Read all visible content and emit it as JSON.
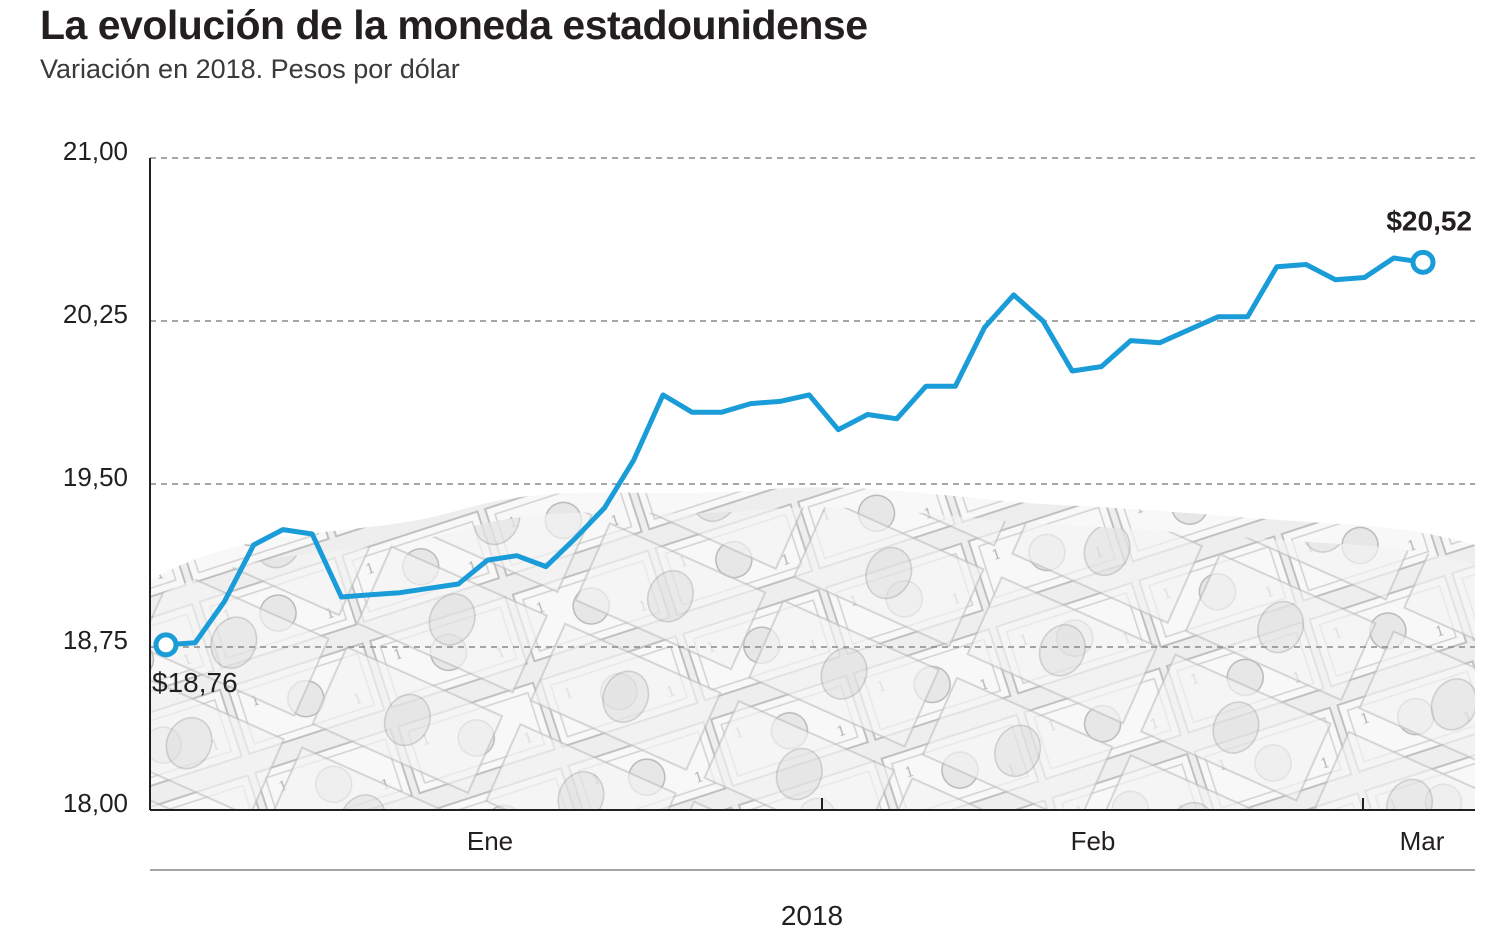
{
  "header": {
    "title": "La evolución de la moneda estadounidense",
    "subtitle": "Variación en 2018. Pesos por dólar"
  },
  "colors": {
    "line": "#1a9cd8",
    "text": "#231f20",
    "grid": "#8a8a8a",
    "axis": "#231f20",
    "background_image_tint": "#d9d9d9"
  },
  "background_image": "dollar-bills-photo",
  "chart_data": {
    "type": "line",
    "title": "La evolución de la moneda estadounidense",
    "subtitle": "Variación en 2018. Pesos por dólar",
    "ylim": [
      18.0,
      21.0
    ],
    "yticks": [
      18.0,
      18.75,
      19.5,
      20.25,
      21.0
    ],
    "ytick_labels": [
      "18,00",
      "18,75",
      "19,50",
      "20,25",
      "21,00"
    ],
    "xticks": [
      "Ene",
      "Feb",
      "Mar"
    ],
    "xlabel": "2018",
    "grid": "dashed horizontal",
    "series": [
      {
        "values": [
          18.76,
          18.77,
          18.96,
          19.22,
          19.29,
          19.27,
          18.98,
          18.99,
          19.0,
          19.02,
          19.04,
          19.15,
          19.17,
          19.12,
          19.25,
          19.39,
          19.61,
          19.91,
          19.83,
          19.83,
          19.87,
          19.88,
          19.91,
          19.75,
          19.82,
          19.8,
          19.95,
          19.95,
          20.22,
          20.37,
          20.25,
          20.02,
          20.04,
          20.16,
          20.15,
          20.21,
          20.27,
          20.27,
          20.5,
          20.51,
          20.44,
          20.45,
          20.54,
          20.52
        ]
      }
    ],
    "annotations": {
      "start": {
        "label": "$18,76",
        "value": 18.76
      },
      "end": {
        "label": "$20,52",
        "value": 20.52
      }
    }
  }
}
